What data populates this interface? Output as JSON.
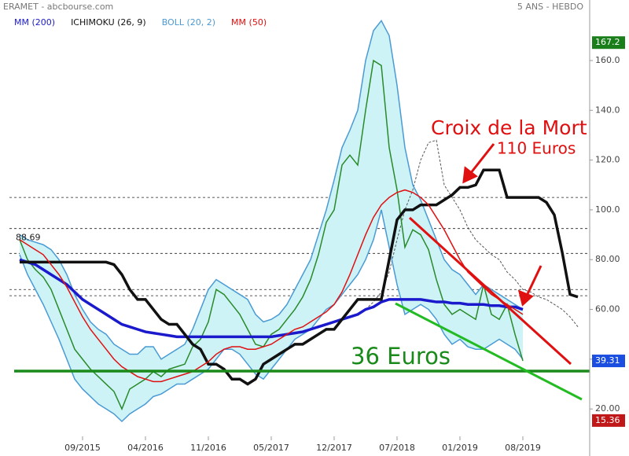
{
  "chart_data": {
    "type": "line",
    "title": "ERAMET - abcbourse.com",
    "subtitle": "5 ANS - HEBDO",
    "categories": [
      null,
      null,
      null,
      null,
      null,
      null,
      null,
      null,
      "09/2015",
      null,
      null,
      null,
      null,
      null,
      null,
      null,
      "04/2016",
      null,
      null,
      null,
      null,
      null,
      null,
      null,
      "11/2016",
      null,
      null,
      null,
      null,
      null,
      null,
      null,
      "05/2017",
      null,
      null,
      null,
      null,
      null,
      null,
      null,
      "12/2017",
      null,
      null,
      null,
      null,
      null,
      null,
      null,
      "07/2018",
      null,
      null,
      null,
      null,
      null,
      null,
      null,
      "01/2019",
      null,
      null,
      null,
      null,
      null,
      null,
      null,
      "08/2019",
      null,
      null,
      null,
      null,
      null,
      null,
      null
    ],
    "price": {
      "color": "#2a8a2a",
      "values": [
        88,
        80,
        76,
        73,
        68,
        60,
        52,
        44,
        40,
        36,
        33,
        30,
        27,
        20,
        28,
        30,
        32,
        35,
        33,
        36,
        37,
        38,
        45,
        48,
        55,
        68,
        66,
        62,
        58,
        52,
        46,
        45,
        50,
        52,
        56,
        60,
        65,
        72,
        82,
        95,
        100,
        118,
        122,
        118,
        140,
        160,
        158,
        125,
        108,
        85,
        92,
        90,
        84,
        72,
        62,
        58,
        60,
        58,
        56,
        70,
        58,
        56,
        62,
        50,
        39.31,
        null,
        null,
        null,
        null,
        null,
        null,
        null
      ]
    },
    "series": [
      {
        "name": "MM (200)",
        "color": "#1a1acc",
        "width": 3.5,
        "values": [
          80,
          79,
          78,
          76,
          74,
          72,
          70,
          67,
          64,
          62,
          60,
          58,
          56,
          54,
          53,
          52,
          51,
          50.5,
          50,
          49.5,
          49,
          49,
          49,
          49,
          49,
          49,
          49,
          49,
          49,
          49,
          49,
          49,
          49,
          49.5,
          50,
          50.5,
          51,
          52,
          53,
          54,
          55,
          56,
          57,
          58,
          60,
          61,
          63,
          64,
          64,
          64,
          64,
          64,
          63.5,
          63,
          63,
          62.5,
          62.5,
          62,
          62,
          62,
          61.5,
          61.5,
          61,
          61,
          60,
          null,
          null,
          null,
          null,
          null,
          null,
          null
        ]
      },
      {
        "name": "ICHIMOKU (26, 9)",
        "color": "#111111",
        "width": 3.5,
        "values": [
          79,
          79,
          79,
          79,
          79,
          79,
          79,
          79,
          79,
          79,
          79,
          79,
          78,
          74,
          68,
          64,
          64,
          60,
          56,
          54,
          54,
          50,
          46,
          44,
          38,
          38,
          36,
          32,
          32,
          30,
          32,
          38,
          40,
          42,
          44,
          46,
          46,
          48,
          50,
          52,
          52,
          56,
          60,
          64,
          64,
          64,
          64,
          80,
          96,
          100,
          100,
          102,
          102,
          102,
          104,
          106,
          109,
          109,
          110,
          116,
          116,
          116,
          105,
          105,
          105,
          105,
          105,
          103,
          98,
          83,
          66,
          65
        ],
        "cloud": [
          null,
          null,
          null,
          null,
          null,
          null,
          null,
          null,
          null,
          null,
          null,
          null,
          null,
          null,
          null,
          null,
          null,
          null,
          null,
          null,
          null,
          null,
          null,
          null,
          null,
          null,
          null,
          null,
          null,
          null,
          null,
          null,
          null,
          null,
          null,
          null,
          null,
          null,
          null,
          null,
          null,
          null,
          null,
          null,
          60,
          63,
          67,
          75,
          88,
          100,
          108,
          120,
          127,
          128,
          110,
          105,
          100,
          93,
          88,
          85,
          82,
          80,
          75,
          72,
          68,
          67,
          65,
          64,
          62,
          60,
          57,
          53
        ]
      },
      {
        "name": "BOLL (20, 2)",
        "color": "#4a9ad4",
        "fill": "#cdf3f7",
        "upper": [
          90,
          88,
          87,
          86,
          84,
          80,
          74,
          66,
          60,
          55,
          52,
          50,
          46,
          44,
          42,
          42,
          45,
          45,
          40,
          42,
          44,
          46,
          52,
          60,
          68,
          72,
          70,
          68,
          66,
          64,
          58,
          55,
          56,
          58,
          62,
          68,
          74,
          80,
          90,
          100,
          112,
          125,
          132,
          140,
          160,
          172,
          176,
          170,
          150,
          125,
          110,
          104,
          96,
          88,
          80,
          76,
          74,
          70,
          66,
          70,
          68,
          66,
          64,
          62,
          60,
          null,
          null,
          null,
          null,
          null,
          null,
          null
        ],
        "lower": [
          82,
          74,
          68,
          62,
          55,
          48,
          40,
          32,
          28,
          25,
          22,
          20,
          18,
          15,
          18,
          20,
          22,
          25,
          26,
          28,
          30,
          30,
          32,
          34,
          36,
          40,
          44,
          44,
          42,
          38,
          34,
          32,
          36,
          40,
          44,
          48,
          50,
          52,
          56,
          60,
          62,
          66,
          70,
          74,
          80,
          88,
          100,
          85,
          70,
          58,
          60,
          62,
          60,
          56,
          50,
          46,
          48,
          45,
          44,
          44,
          46,
          48,
          46,
          44,
          40,
          null,
          null,
          null,
          null,
          null,
          null,
          null
        ]
      },
      {
        "name": "MM (50)",
        "color": "#e01010",
        "width": 1.5,
        "values": [
          88,
          86,
          84,
          82,
          78,
          74,
          69,
          63,
          57,
          52,
          48,
          44,
          40,
          37,
          35,
          33,
          32,
          31,
          31,
          32,
          33,
          34,
          35,
          37,
          39,
          42,
          44,
          45,
          45,
          44,
          44,
          45,
          46,
          48,
          50,
          52,
          53,
          55,
          57,
          59,
          62,
          67,
          74,
          82,
          90,
          97,
          102,
          105,
          107,
          108,
          107,
          105,
          102,
          97,
          92,
          86,
          80,
          75,
          72,
          69,
          66,
          64,
          62,
          60,
          58,
          null,
          null,
          null,
          null,
          null,
          null,
          null
        ]
      }
    ],
    "ylim": [
      9,
      178
    ],
    "yticks": [
      {
        "value": 20,
        "label": "20.00"
      },
      {
        "value": 40,
        "label": "40.00"
      },
      {
        "value": 60,
        "label": "60.00"
      },
      {
        "value": 80,
        "label": "80.00"
      },
      {
        "value": 100,
        "label": "100.0"
      },
      {
        "value": 120,
        "label": "120.0"
      },
      {
        "value": 140,
        "label": "140.0"
      },
      {
        "value": 160,
        "label": "160.0"
      }
    ],
    "levels": [
      105,
      92.5,
      82.5,
      68,
      65.5
    ],
    "first_value": 88.69,
    "markers": [
      {
        "value": 167.2,
        "color": "#1a7f1a"
      },
      {
        "value": 39.31,
        "color": "#1a4ee0"
      },
      {
        "value": 15.36,
        "color": "#c01818"
      }
    ],
    "annotations": [
      "Croix de la Mort",
      "110 Euros",
      "36 Euros"
    ]
  }
}
